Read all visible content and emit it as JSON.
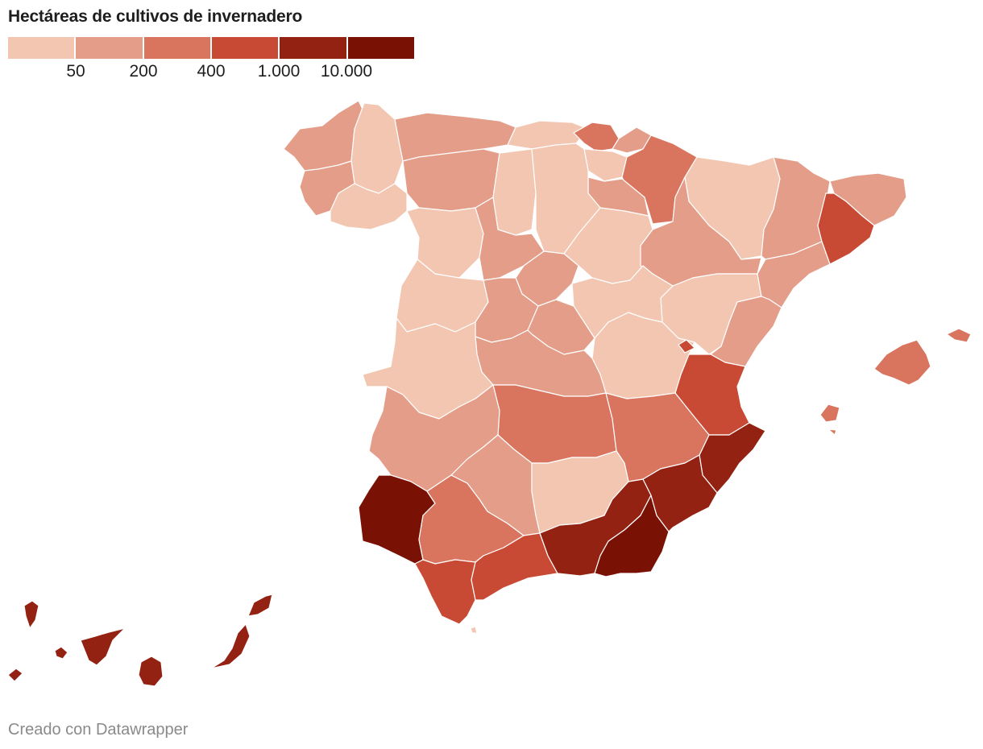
{
  "title": "Hectáreas de cultivos de invernadero",
  "legend": {
    "colors": [
      "#f2c6b0",
      "#e49d88",
      "#d9755e",
      "#c84a34",
      "#942212",
      "#7a1105"
    ],
    "ticks": [
      "50",
      "200",
      "400",
      "1.000",
      "10.000"
    ]
  },
  "footer": "Creado con Datawrapper"
}
